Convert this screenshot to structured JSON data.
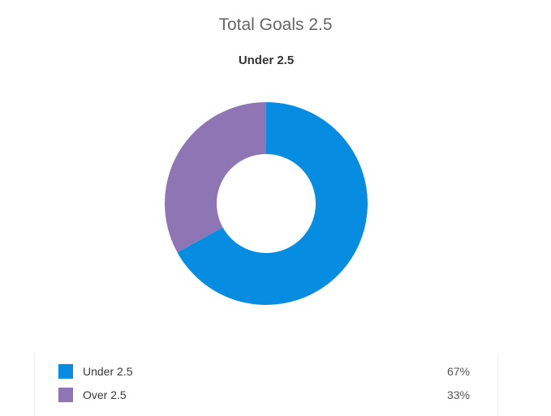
{
  "chart_data": {
    "type": "pie",
    "donut": true,
    "title": "Total Goals 2.5",
    "subtitle": "Under 2.5",
    "categories": [
      "Under 2.5",
      "Over 2.5"
    ],
    "values": [
      67,
      33
    ],
    "unit": "%",
    "colors": [
      "#068de1",
      "#8e76b5"
    ],
    "inner_radius_ratio": 0.488,
    "start_angle_deg": 0,
    "direction": "clockwise",
    "legend_position": "bottom",
    "legend": [
      {
        "label": "Under 2.5",
        "value": "67%",
        "color": "#068de1"
      },
      {
        "label": "Over 2.5",
        "value": "33%",
        "color": "#8e76b5"
      }
    ],
    "text_colors": {
      "title": "#666666",
      "subtitle": "#333333",
      "legend_label": "#383838",
      "legend_value": "#555555"
    }
  }
}
